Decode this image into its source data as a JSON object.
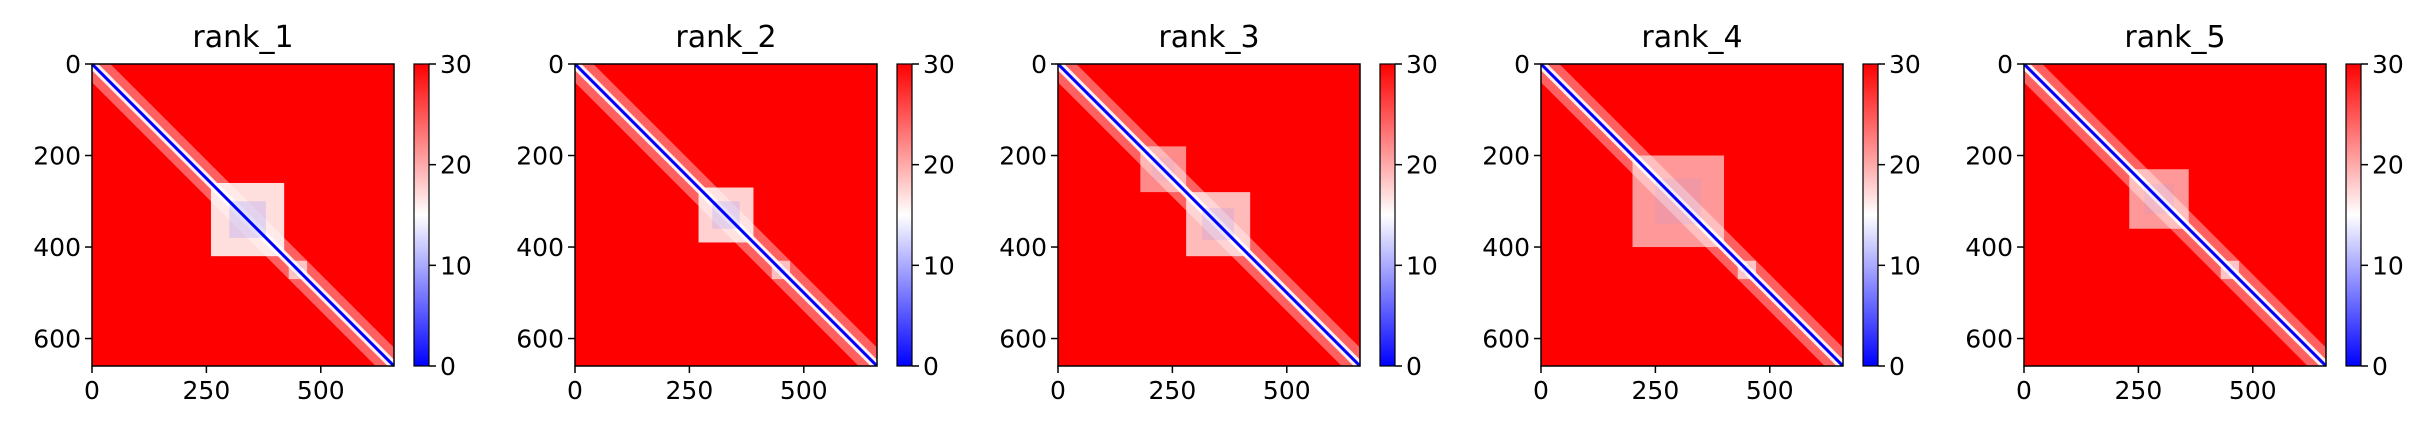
{
  "chart_data": [
    {
      "type": "heatmap",
      "title": "rank_1",
      "xlabel": "",
      "ylabel": "",
      "xlim": [
        0,
        660
      ],
      "ylim": [
        660,
        0
      ],
      "x_ticks": [
        0,
        250,
        500
      ],
      "x_tick_labels": [
        "0",
        "250",
        "500"
      ],
      "y_ticks": [
        0,
        200,
        400,
        600
      ],
      "y_tick_labels": [
        "0",
        "200",
        "400",
        "600"
      ],
      "colormap": "bwr",
      "colorbar": {
        "min": 0,
        "max": 30,
        "ticks": [
          0,
          10,
          20,
          30
        ],
        "tick_labels": [
          "0",
          "10",
          "20",
          "30"
        ]
      },
      "low_distance_regions": [
        {
          "x_range": [
            260,
            420
          ],
          "y_range": [
            260,
            420
          ],
          "strength": 0.95
        },
        {
          "x_range": [
            430,
            470
          ],
          "y_range": [
            430,
            470
          ],
          "strength": 0.5
        }
      ]
    },
    {
      "type": "heatmap",
      "title": "rank_2",
      "xlabel": "",
      "ylabel": "",
      "xlim": [
        0,
        660
      ],
      "ylim": [
        660,
        0
      ],
      "x_ticks": [
        0,
        250,
        500
      ],
      "x_tick_labels": [
        "0",
        "250",
        "500"
      ],
      "y_ticks": [
        0,
        200,
        400,
        600
      ],
      "y_tick_labels": [
        "0",
        "200",
        "400",
        "600"
      ],
      "colormap": "bwr",
      "colorbar": {
        "min": 0,
        "max": 30,
        "ticks": [
          0,
          10,
          20,
          30
        ],
        "tick_labels": [
          "0",
          "10",
          "20",
          "30"
        ]
      },
      "low_distance_regions": [
        {
          "x_range": [
            270,
            390
          ],
          "y_range": [
            270,
            390
          ],
          "strength": 0.85
        },
        {
          "x_range": [
            430,
            470
          ],
          "y_range": [
            430,
            470
          ],
          "strength": 0.45
        }
      ]
    },
    {
      "type": "heatmap",
      "title": "rank_3",
      "xlabel": "",
      "ylabel": "",
      "xlim": [
        0,
        660
      ],
      "ylim": [
        660,
        0
      ],
      "x_ticks": [
        0,
        250,
        500
      ],
      "x_tick_labels": [
        "0",
        "250",
        "500"
      ],
      "y_ticks": [
        0,
        200,
        400,
        600
      ],
      "y_tick_labels": [
        "0",
        "200",
        "400",
        "600"
      ],
      "colormap": "bwr",
      "colorbar": {
        "min": 0,
        "max": 30,
        "ticks": [
          0,
          10,
          20,
          30
        ],
        "tick_labels": [
          "0",
          "10",
          "20",
          "30"
        ]
      },
      "low_distance_regions": [
        {
          "x_range": [
            280,
            420
          ],
          "y_range": [
            280,
            420
          ],
          "strength": 0.7
        },
        {
          "x_range": [
            180,
            280
          ],
          "y_range": [
            180,
            280
          ],
          "strength": 0.35
        }
      ]
    },
    {
      "type": "heatmap",
      "title": "rank_4",
      "xlabel": "",
      "ylabel": "",
      "xlim": [
        0,
        660
      ],
      "ylim": [
        660,
        0
      ],
      "x_ticks": [
        0,
        250,
        500
      ],
      "x_tick_labels": [
        "0",
        "250",
        "500"
      ],
      "y_ticks": [
        0,
        200,
        400,
        600
      ],
      "y_tick_labels": [
        "0",
        "200",
        "400",
        "600"
      ],
      "colormap": "bwr",
      "colorbar": {
        "min": 0,
        "max": 30,
        "ticks": [
          0,
          10,
          20,
          30
        ],
        "tick_labels": [
          "0",
          "10",
          "20",
          "30"
        ]
      },
      "low_distance_regions": [
        {
          "x_range": [
            200,
            400
          ],
          "y_range": [
            200,
            400
          ],
          "strength": 0.45
        },
        {
          "x_range": [
            430,
            470
          ],
          "y_range": [
            430,
            470
          ],
          "strength": 0.5
        }
      ]
    },
    {
      "type": "heatmap",
      "title": "rank_5",
      "xlabel": "",
      "ylabel": "",
      "xlim": [
        0,
        660
      ],
      "ylim": [
        660,
        0
      ],
      "x_ticks": [
        0,
        250,
        500
      ],
      "x_tick_labels": [
        "0",
        "250",
        "500"
      ],
      "y_ticks": [
        0,
        200,
        400,
        600
      ],
      "y_tick_labels": [
        "0",
        "200",
        "400",
        "600"
      ],
      "colormap": "bwr",
      "colorbar": {
        "min": 0,
        "max": 30,
        "ticks": [
          0,
          10,
          20,
          30
        ],
        "tick_labels": [
          "0",
          "10",
          "20",
          "30"
        ]
      },
      "low_distance_regions": [
        {
          "x_range": [
            230,
            360
          ],
          "y_range": [
            230,
            360
          ],
          "strength": 0.45
        },
        {
          "x_range": [
            430,
            470
          ],
          "y_range": [
            430,
            470
          ],
          "strength": 0.5
        }
      ]
    }
  ],
  "colors": {
    "high": "#ff0000",
    "mid": "#ffffff",
    "low": "#0000ff",
    "axis": "#000000"
  }
}
